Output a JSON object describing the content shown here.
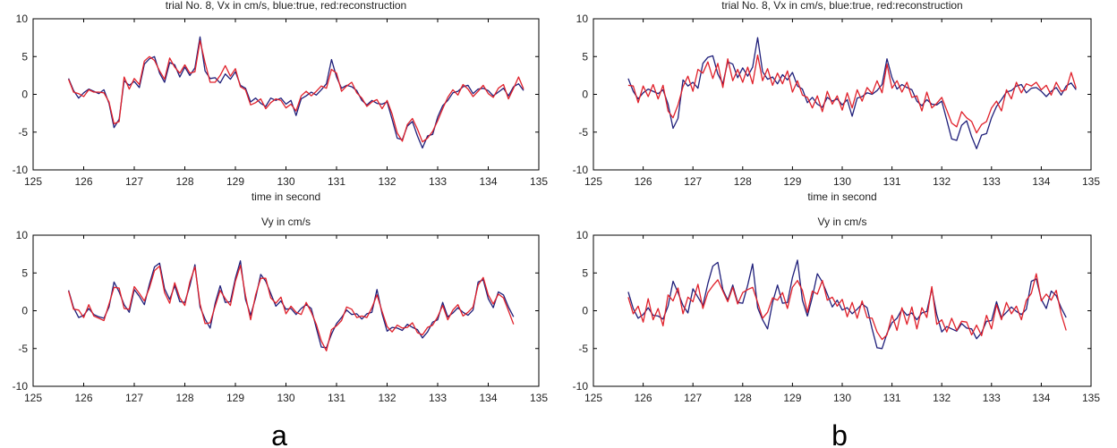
{
  "colors": {
    "true": "#1f1f7a",
    "reconstruction": "#e0202a",
    "axis": "#000000"
  },
  "panel_labels": [
    "a",
    "b"
  ],
  "chart_data": [
    {
      "type": "line",
      "panel": "a",
      "title": "trial No. 8, Vx in cm/s, blue:true, red:reconstruction",
      "xlabel": "time in second",
      "ylabel": "",
      "xlim": [
        125,
        135
      ],
      "ylim": [
        -10,
        10
      ],
      "xticks": [
        "125",
        "126",
        "127",
        "128",
        "129",
        "130",
        "131",
        "132",
        "133",
        "134",
        "135"
      ],
      "yticks": [
        "10",
        "5",
        "0",
        "-5",
        "-10"
      ],
      "series": [
        {
          "key": "true",
          "x_start": 125.7,
          "x_step": 0.1,
          "values": [
            2.1,
            0.5,
            -0.5,
            0.2,
            0.7,
            0.4,
            0.1,
            0.6,
            -1.2,
            -4.4,
            -3.3,
            1.8,
            1.2,
            1.7,
            0.9,
            4.0,
            4.7,
            5.0,
            2.8,
            1.6,
            4.2,
            3.9,
            2.3,
            3.6,
            2.5,
            3.5,
            7.6,
            3.1,
            2.1,
            2.2,
            1.5,
            2.7,
            2.0,
            3.0,
            1.2,
            0.8,
            -1.0,
            -0.5,
            -1.2,
            -1.6,
            -0.5,
            -0.8,
            -0.5,
            -1.3,
            -0.8,
            -2.8,
            -0.6,
            -0.2,
            0.3,
            -0.1,
            0.6,
            1.4,
            4.6,
            2.3,
            0.8,
            1.2,
            1.0,
            0.5,
            -0.8,
            -1.4,
            -0.8,
            -1.2,
            -1.3,
            -1.0,
            -3.3,
            -5.8,
            -6.0,
            -4.2,
            -3.6,
            -5.5,
            -7.1,
            -5.5,
            -5.3,
            -3.0,
            -1.5,
            -0.8,
            0.2,
            0.4,
            1.0,
            1.2,
            0.1,
            0.7,
            0.8,
            0.5,
            -0.2,
            0.3,
            0.8,
            -0.2,
            1.0,
            1.4,
            0.5
          ]
        },
        {
          "key": "reconstruction",
          "x_start": 125.7,
          "x_step": 0.1,
          "values": [
            2.0,
            0.3,
            0.1,
            -0.3,
            0.6,
            0.3,
            0.3,
            0.2,
            -1.0,
            -3.9,
            -3.6,
            2.3,
            0.7,
            2.1,
            1.3,
            4.4,
            5.0,
            4.5,
            3.1,
            2.0,
            4.8,
            3.6,
            2.8,
            3.9,
            2.8,
            3.0,
            7.1,
            4.2,
            1.6,
            1.6,
            2.5,
            3.8,
            2.4,
            3.4,
            1.0,
            0.6,
            -1.4,
            -1.1,
            -0.6,
            -1.9,
            -1.1,
            -0.6,
            -0.8,
            -1.8,
            -1.3,
            -2.2,
            -0.2,
            0.4,
            -0.2,
            0.4,
            1.1,
            0.8,
            3.3,
            2.8,
            0.4,
            1.1,
            1.6,
            0.2,
            -0.5,
            -1.6,
            -1.0,
            -0.7,
            -1.9,
            -0.8,
            -2.6,
            -5.1,
            -6.2,
            -4.0,
            -3.2,
            -4.6,
            -6.3,
            -5.8,
            -4.9,
            -3.5,
            -1.9,
            -0.4,
            0.6,
            -0.1,
            1.3,
            0.7,
            -0.3,
            0.4,
            1.2,
            0.1,
            -0.4,
            0.8,
            1.3,
            -0.6,
            0.8,
            2.3,
            0.7
          ]
        }
      ]
    },
    {
      "type": "line",
      "panel": "a",
      "title": "Vy in cm/s",
      "xlabel": "",
      "ylabel": "",
      "xlim": [
        125,
        135
      ],
      "ylim": [
        -10,
        10
      ],
      "xticks": [
        "125",
        "126",
        "127",
        "128",
        "129",
        "130",
        "131",
        "132",
        "133",
        "134",
        "135"
      ],
      "yticks": [
        "10",
        "5",
        "0",
        "-5",
        "-10"
      ],
      "series": [
        {
          "key": "true",
          "x_start": 125.7,
          "x_step": 0.1,
          "values": [
            2.7,
            0.4,
            -0.9,
            -0.6,
            0.3,
            -0.5,
            -0.8,
            -1.0,
            0.5,
            3.8,
            2.5,
            0.8,
            -0.2,
            2.8,
            1.9,
            0.8,
            3.5,
            5.8,
            6.3,
            2.9,
            1.5,
            3.3,
            1.2,
            1.1,
            3.3,
            6.1,
            0.5,
            -1.1,
            -2.3,
            1.0,
            3.3,
            1.1,
            1.2,
            4.3,
            6.6,
            1.5,
            -0.6,
            1.7,
            4.8,
            3.9,
            2.3,
            0.6,
            1.3,
            0.2,
            0.3,
            -0.5,
            0.3,
            0.8,
            0.3,
            -2.3,
            -4.8,
            -4.9,
            -3.1,
            -1.7,
            -0.9,
            0.1,
            -0.5,
            -0.4,
            -1.1,
            -0.4,
            -0.2,
            2.8,
            -0.4,
            -2.7,
            -2.2,
            -2.3,
            -2.6,
            -1.8,
            -2.2,
            -2.5,
            -3.6,
            -2.8,
            -1.5,
            -1.2,
            1.1,
            -0.8,
            -0.3,
            0.4,
            -0.2,
            -0.6,
            0.1,
            3.8,
            4.1,
            1.6,
            0.4,
            2.5,
            2.1,
            0.5,
            -0.8
          ]
        },
        {
          "key": "reconstruction",
          "x_start": 125.7,
          "x_step": 0.1,
          "values": [
            2.6,
            0.2,
            0.1,
            -0.9,
            0.8,
            -0.7,
            -1.0,
            -1.3,
            0.9,
            3.1,
            3.0,
            0.3,
            0.2,
            3.2,
            2.3,
            1.3,
            3.0,
            5.3,
            5.9,
            2.4,
            1.0,
            3.7,
            1.7,
            0.7,
            3.8,
            5.8,
            0.9,
            -1.7,
            -1.6,
            0.6,
            2.7,
            1.6,
            0.7,
            3.9,
            6.0,
            2.0,
            -1.2,
            2.1,
            4.3,
            4.3,
            1.7,
            1.0,
            1.8,
            -0.4,
            0.6,
            -0.2,
            -0.5,
            1.1,
            -0.2,
            -1.8,
            -4.0,
            -5.3,
            -2.5,
            -2.0,
            -1.3,
            0.5,
            0.2,
            -0.9,
            -0.7,
            -0.9,
            0.4,
            2.1,
            -0.1,
            -2.1,
            -2.8,
            -1.9,
            -2.3,
            -2.2,
            -1.6,
            -2.9,
            -3.2,
            -2.2,
            -1.9,
            -0.8,
            0.7,
            -1.2,
            0.1,
            0.8,
            -0.7,
            -0.2,
            0.5,
            3.4,
            4.4,
            2.1,
            0.9,
            2.2,
            1.7,
            0.0,
            -1.8
          ]
        }
      ]
    },
    {
      "type": "line",
      "panel": "b",
      "title": "trial No. 8, Vx in cm/s, blue:true, red:reconstruction",
      "xlabel": "time in second",
      "ylabel": "",
      "xlim": [
        125,
        135
      ],
      "ylim": [
        -10,
        10
      ],
      "xticks": [
        "125",
        "126",
        "127",
        "128",
        "129",
        "130",
        "131",
        "132",
        "133",
        "134",
        "135"
      ],
      "yticks": [
        "10",
        "5",
        "0",
        "-5",
        "-10"
      ],
      "series": [
        {
          "key": "true",
          "x_start": 125.7,
          "x_step": 0.1,
          "values": [
            2.1,
            0.4,
            -0.6,
            0.2,
            0.7,
            0.4,
            0.1,
            0.6,
            -1.3,
            -4.5,
            -3.2,
            1.9,
            1.1,
            1.6,
            0.8,
            4.1,
            4.9,
            5.1,
            2.7,
            1.4,
            4.3,
            4.0,
            2.2,
            3.5,
            2.4,
            3.6,
            7.5,
            3.0,
            2.0,
            2.3,
            1.4,
            2.6,
            1.9,
            2.9,
            1.1,
            0.7,
            -1.1,
            -0.4,
            -1.3,
            -1.7,
            -0.4,
            -0.9,
            -0.6,
            -1.4,
            -0.7,
            -2.9,
            -0.5,
            -0.3,
            0.2,
            0.0,
            0.5,
            1.3,
            4.7,
            2.2,
            0.7,
            1.3,
            0.9,
            0.6,
            -0.9,
            -1.5,
            -0.7,
            -1.3,
            -1.4,
            -0.9,
            -3.4,
            -5.9,
            -6.1,
            -4.1,
            -3.5,
            -5.6,
            -7.2,
            -5.4,
            -5.2,
            -3.1,
            -1.6,
            -0.7,
            0.3,
            0.5,
            1.1,
            1.3,
            0.2,
            0.8,
            0.9,
            0.4,
            -0.3,
            0.4,
            0.9,
            -0.1,
            1.1,
            1.5,
            0.6
          ]
        },
        {
          "key": "reconstruction",
          "x_start": 125.7,
          "x_step": 0.1,
          "values": [
            1.2,
            1.1,
            -1.1,
            1.1,
            -0.3,
            1.3,
            -0.6,
            1.2,
            -2.2,
            -3.1,
            -1.4,
            1.0,
            2.4,
            0.4,
            3.3,
            2.8,
            4.3,
            2.1,
            4.1,
            0.9,
            4.7,
            1.8,
            3.3,
            1.6,
            3.6,
            1.4,
            5.2,
            1.8,
            3.4,
            1.2,
            2.8,
            1.4,
            3.1,
            0.3,
            1.8,
            -0.1,
            -0.4,
            -1.8,
            -0.2,
            -2.3,
            0.4,
            -1.3,
            -0.2,
            -2.1,
            0.2,
            -1.8,
            0.6,
            -0.9,
            0.9,
            0.1,
            1.8,
            0.2,
            4.0,
            0.8,
            1.8,
            0.3,
            1.6,
            -0.4,
            -0.2,
            -2.2,
            0.3,
            -1.8,
            -1.2,
            -0.4,
            -2.1,
            -3.8,
            -4.3,
            -2.3,
            -3.1,
            -3.6,
            -5.1,
            -4.0,
            -3.6,
            -1.8,
            -0.9,
            -2.2,
            0.6,
            -0.6,
            1.6,
            0.2,
            1.4,
            1.1,
            1.6,
            0.6,
            1.2,
            -0.1,
            1.6,
            0.4,
            0.6,
            2.9,
            0.8
          ]
        }
      ]
    },
    {
      "type": "line",
      "panel": "b",
      "title": "Vy in cm/s",
      "xlabel": "",
      "ylabel": "",
      "xlim": [
        125,
        135
      ],
      "ylim": [
        -10,
        10
      ],
      "xticks": [
        "125",
        "126",
        "127",
        "128",
        "129",
        "130",
        "131",
        "132",
        "133",
        "134",
        "135"
      ],
      "yticks": [
        "10",
        "5",
        "0",
        "-5",
        "-10"
      ],
      "series": [
        {
          "key": "true",
          "x_start": 125.7,
          "x_step": 0.1,
          "values": [
            2.5,
            0.3,
            -1.0,
            -0.5,
            0.4,
            -0.6,
            -0.7,
            -1.1,
            0.6,
            3.9,
            2.4,
            0.7,
            -0.3,
            2.9,
            1.8,
            0.7,
            3.6,
            5.9,
            6.4,
            2.8,
            1.4,
            3.4,
            1.1,
            1.0,
            3.4,
            6.2,
            0.4,
            -1.2,
            -2.4,
            1.1,
            3.4,
            1.0,
            1.1,
            4.4,
            6.7,
            1.4,
            -0.7,
            1.8,
            4.9,
            3.8,
            2.2,
            0.5,
            1.4,
            0.1,
            0.4,
            -0.4,
            0.2,
            0.9,
            0.4,
            -2.4,
            -4.9,
            -5.0,
            -3.0,
            -1.6,
            -1.0,
            0.2,
            -0.6,
            -0.3,
            -1.2,
            -0.3,
            -0.1,
            2.9,
            -0.5,
            -2.8,
            -2.1,
            -2.4,
            -2.7,
            -1.7,
            -2.3,
            -2.4,
            -3.7,
            -2.9,
            -1.4,
            -1.3,
            1.2,
            -0.9,
            -0.2,
            0.5,
            -0.1,
            -0.5,
            0.2,
            3.9,
            4.2,
            1.5,
            0.3,
            2.6,
            2.0,
            0.4,
            -0.9
          ]
        },
        {
          "key": "reconstruction",
          "x_start": 125.7,
          "x_step": 0.1,
          "values": [
            1.8,
            -0.4,
            0.6,
            -1.5,
            1.6,
            -1.2,
            0.3,
            -2.0,
            2.1,
            1.3,
            3.0,
            -0.4,
            1.8,
            1.2,
            3.5,
            0.3,
            2.4,
            3.3,
            4.1,
            2.6,
            1.2,
            3.1,
            0.9,
            2.4,
            2.8,
            3.1,
            1.1,
            -1.0,
            -0.2,
            1.7,
            1.4,
            2.4,
            0.3,
            3.1,
            4.0,
            2.7,
            -0.2,
            2.6,
            2.2,
            4.0,
            1.4,
            1.8,
            0.6,
            1.5,
            -0.8,
            1.1,
            -1.0,
            1.3,
            -0.9,
            -1.0,
            -2.8,
            -3.8,
            -3.2,
            -0.6,
            -2.6,
            0.4,
            -1.8,
            0.5,
            -2.4,
            0.4,
            -0.9,
            3.2,
            -1.8,
            -1.2,
            -2.8,
            -1.0,
            -2.6,
            -1.4,
            -1.5,
            -3.2,
            -1.9,
            -3.3,
            -0.6,
            -2.4,
            0.8,
            -1.2,
            1.1,
            -0.4,
            0.6,
            -1.2,
            1.4,
            2.3,
            4.9,
            1.3,
            2.2,
            1.4,
            2.7,
            -0.4,
            -2.6
          ]
        }
      ]
    }
  ]
}
